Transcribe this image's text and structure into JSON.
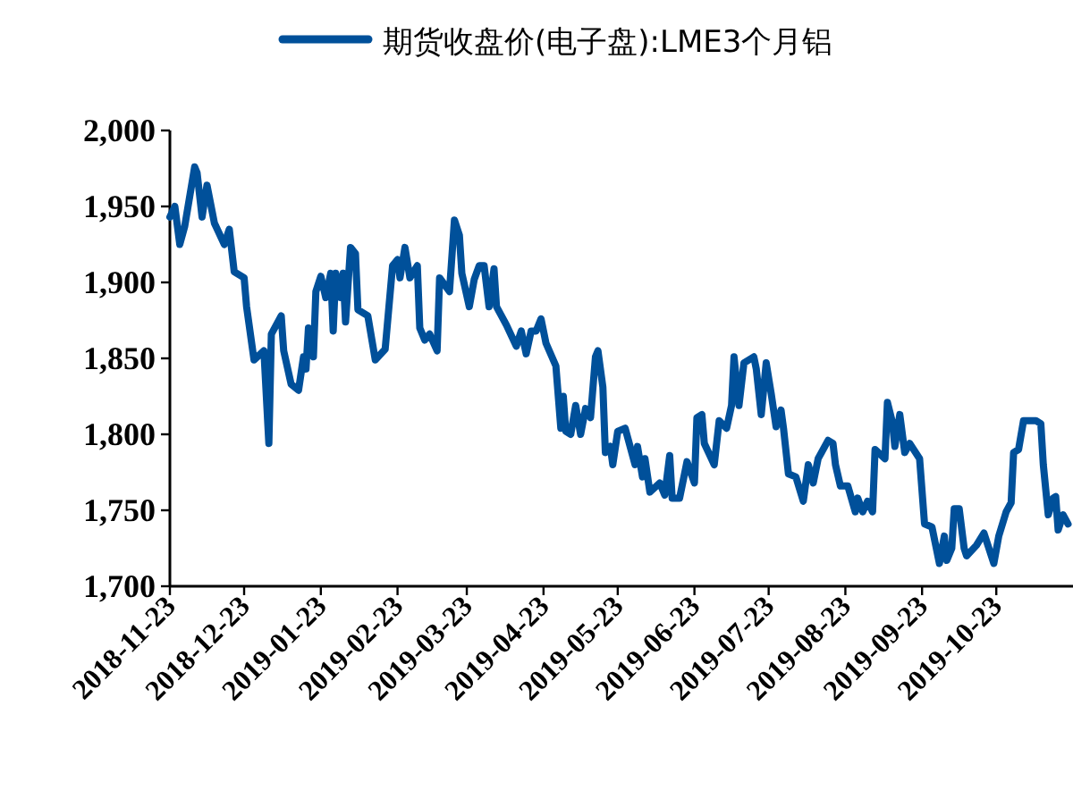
{
  "chart_data": {
    "type": "line",
    "legend": "top",
    "line_style": "solid",
    "marker": "none",
    "xlim": [
      "2018-11-23",
      "2019-11-23"
    ],
    "xticks": [
      "2018-11-23",
      "2018-12-23",
      "2019-01-23",
      "2019-02-23",
      "2019-03-23",
      "2019-04-23",
      "2019-05-23",
      "2019-06-23",
      "2019-07-23",
      "2019-08-23",
      "2019-09-23",
      "2019-10-23"
    ],
    "ylim": [
      1700,
      2000
    ],
    "yticks": [
      {
        "value": 1700,
        "label": "1,700"
      },
      {
        "value": 1750,
        "label": "1,750"
      },
      {
        "value": 1800,
        "label": "1,800"
      },
      {
        "value": 1850,
        "label": "1,850"
      },
      {
        "value": 1900,
        "label": "1,900"
      },
      {
        "value": 1950,
        "label": "1,950"
      },
      {
        "value": 2000,
        "label": "2,000"
      }
    ],
    "x": [
      "2018-11-23",
      "2018-11-25",
      "2018-11-27",
      "2018-11-29",
      "2018-12-03",
      "2018-12-04",
      "2018-12-06",
      "2018-12-08",
      "2018-12-11",
      "2018-12-15",
      "2018-12-17",
      "2018-12-19",
      "2018-12-23",
      "2018-12-24",
      "2018-12-27",
      "2018-12-31",
      "2019-01-02",
      "2019-01-03",
      "2019-01-07",
      "2019-01-08",
      "2019-01-11",
      "2019-01-14",
      "2019-01-16",
      "2019-01-17",
      "2019-01-18",
      "2019-01-20",
      "2019-01-21",
      "2019-01-23",
      "2019-01-25",
      "2019-01-27",
      "2019-01-28",
      "2019-01-29",
      "2019-01-31",
      "2019-02-01",
      "2019-02-02",
      "2019-02-04",
      "2019-02-06",
      "2019-02-07",
      "2019-02-11",
      "2019-02-14",
      "2019-02-18",
      "2019-02-21",
      "2019-02-23",
      "2019-02-24",
      "2019-02-26",
      "2019-02-28",
      "2019-03-03",
      "2019-03-04",
      "2019-03-06",
      "2019-03-08",
      "2019-03-11",
      "2019-03-12",
      "2019-03-16",
      "2019-03-18",
      "2019-03-20",
      "2019-03-21",
      "2019-03-24",
      "2019-03-26",
      "2019-03-28",
      "2019-03-30",
      "2019-04-01",
      "2019-04-03",
      "2019-04-04",
      "2019-04-08",
      "2019-04-12",
      "2019-04-14",
      "2019-04-16",
      "2019-04-18",
      "2019-04-20",
      "2019-04-22",
      "2019-04-24",
      "2019-04-28",
      "2019-04-30",
      "2019-05-01",
      "2019-05-02",
      "2019-05-04",
      "2019-05-06",
      "2019-05-08",
      "2019-05-10",
      "2019-05-12",
      "2019-05-14",
      "2019-05-15",
      "2019-05-17",
      "2019-05-18",
      "2019-05-20",
      "2019-05-21",
      "2019-05-23",
      "2019-05-26",
      "2019-05-30",
      "2019-05-31",
      "2019-06-02",
      "2019-06-03",
      "2019-06-05",
      "2019-06-09",
      "2019-06-11",
      "2019-06-13",
      "2019-06-14",
      "2019-06-17",
      "2019-06-20",
      "2019-06-23",
      "2019-06-24",
      "2019-06-26",
      "2019-06-27",
      "2019-07-01",
      "2019-07-03",
      "2019-07-06",
      "2019-07-08",
      "2019-07-09",
      "2019-07-11",
      "2019-07-13",
      "2019-07-17",
      "2019-07-18",
      "2019-07-20",
      "2019-07-22",
      "2019-07-24",
      "2019-07-26",
      "2019-07-28",
      "2019-07-29",
      "2019-07-31",
      "2019-08-03",
      "2019-08-06",
      "2019-08-08",
      "2019-08-10",
      "2019-08-12",
      "2019-08-16",
      "2019-08-18",
      "2019-08-19",
      "2019-08-21",
      "2019-08-24",
      "2019-08-27",
      "2019-08-28",
      "2019-08-30",
      "2019-09-01",
      "2019-09-03",
      "2019-09-04",
      "2019-09-08",
      "2019-09-09",
      "2019-09-11",
      "2019-09-12",
      "2019-09-14",
      "2019-09-16",
      "2019-09-18",
      "2019-09-22",
      "2019-09-24",
      "2019-09-27",
      "2019-09-30",
      "2019-10-02",
      "2019-10-03",
      "2019-10-05",
      "2019-10-06",
      "2019-10-08",
      "2019-10-10",
      "2019-10-11",
      "2019-10-15",
      "2019-10-18",
      "2019-10-22",
      "2019-10-24",
      "2019-10-27",
      "2019-10-29",
      "2019-10-30",
      "2019-11-01",
      "2019-11-03",
      "2019-11-06",
      "2019-11-08",
      "2019-11-10",
      "2019-11-11",
      "2019-11-13",
      "2019-11-15",
      "2019-11-16",
      "2019-11-17",
      "2019-11-19",
      "2019-11-21"
    ],
    "series": [
      {
        "name": "期货收盘价(电子盘):LME3个月铝",
        "color": "#00509a",
        "values": [
          1943,
          1950,
          1925,
          1937,
          1976,
          1972,
          1943,
          1964,
          1939,
          1925,
          1935,
          1907,
          1903,
          1884,
          1849,
          1855,
          1794,
          1866,
          1878,
          1855,
          1833,
          1829,
          1851,
          1843,
          1870,
          1851,
          1894,
          1904,
          1890,
          1906,
          1868,
          1906,
          1890,
          1906,
          1874,
          1923,
          1919,
          1882,
          1878,
          1849,
          1856,
          1911,
          1915,
          1903,
          1923,
          1903,
          1911,
          1870,
          1862,
          1866,
          1855,
          1903,
          1894,
          1941,
          1931,
          1906,
          1884,
          1902,
          1911,
          1911,
          1884,
          1909,
          1884,
          1872,
          1858,
          1868,
          1853,
          1868,
          1868,
          1876,
          1860,
          1845,
          1804,
          1825,
          1802,
          1800,
          1819,
          1800,
          1817,
          1811,
          1851,
          1855,
          1831,
          1788,
          1792,
          1780,
          1802,
          1804,
          1780,
          1792,
          1772,
          1784,
          1762,
          1768,
          1760,
          1786,
          1758,
          1758,
          1782,
          1768,
          1811,
          1813,
          1794,
          1780,
          1809,
          1804,
          1819,
          1851,
          1819,
          1847,
          1851,
          1843,
          1813,
          1847,
          1827,
          1805,
          1816,
          1804,
          1774,
          1772,
          1756,
          1780,
          1768,
          1784,
          1796,
          1794,
          1780,
          1766,
          1766,
          1749,
          1758,
          1749,
          1756,
          1749,
          1790,
          1784,
          1821,
          1808,
          1792,
          1813,
          1788,
          1794,
          1784,
          1741,
          1739,
          1715,
          1733,
          1717,
          1725,
          1751,
          1751,
          1725,
          1720,
          1727,
          1735,
          1715,
          1733,
          1749,
          1755,
          1788,
          1790,
          1809,
          1809,
          1809,
          1807,
          1780,
          1747,
          1758,
          1759,
          1737,
          1747,
          1741
        ]
      }
    ]
  }
}
